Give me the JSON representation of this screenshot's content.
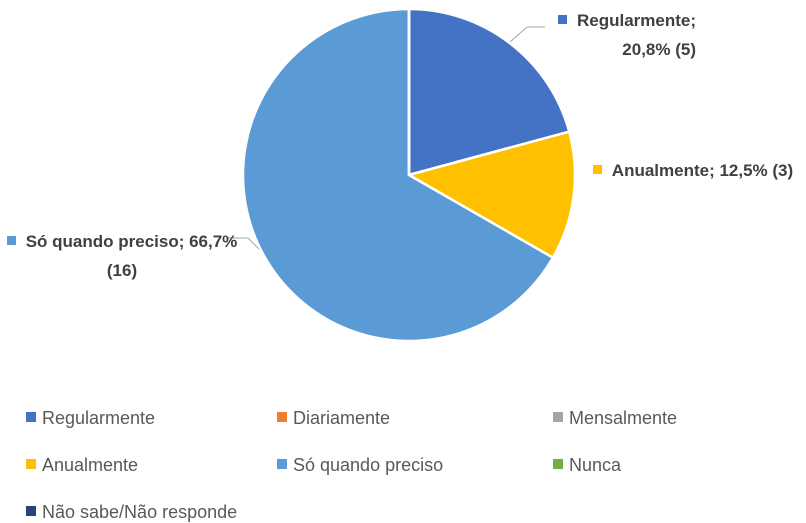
{
  "chart_data": {
    "type": "pie",
    "categories": [
      "Regularmente",
      "Diariamente",
      "Mensalmente",
      "Anualmente",
      "Só quando preciso",
      "Nunca",
      "Não sabe/Não responde"
    ],
    "values": [
      20.8,
      0,
      0,
      12.5,
      66.7,
      0,
      0
    ],
    "value_labels": [
      "Regularmente; 20,8% (5)",
      null,
      null,
      "Anualmente; 12,5% (3)",
      "Só quando preciso; 66,7% (16)",
      null,
      null
    ],
    "colors": [
      "#4472c4",
      "#ed7d31",
      "#a5a5a5",
      "#ffc000",
      "#5b9bd5",
      "#70ad47",
      "#264478"
    ],
    "legend": "bottom"
  }
}
